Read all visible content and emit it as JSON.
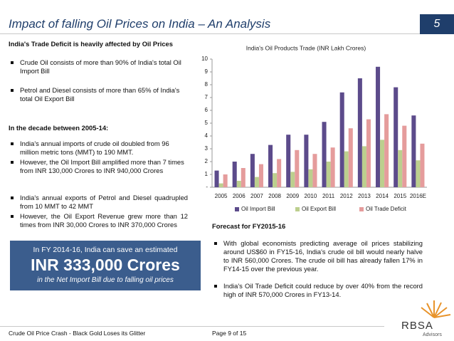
{
  "header": {
    "title": "Impact of falling Oil Prices on India – An Analysis",
    "slide_number": "5"
  },
  "left": {
    "heading": "India's Trade Deficit is heavily affected by Oil Prices",
    "bullets1": [
      "Crude Oil consists of more than 90% of India's total Oil Import Bill",
      "Petrol and Diesel consists of more than 65% of India's total Oil Export Bill"
    ],
    "heading2": "In the decade between 2005-14:",
    "bullets2": [
      "India's annual imports of crude oil doubled from 96 million metric tons (MMT) to 190 MMT.",
      "However, the Oil Import Bill amplified more than 7 times from INR 130,000 Crores to INR 940,000 Crores"
    ],
    "bullets3": [
      "India's annual exports of Petrol and Diesel quadrupled from 10 MMT to 42 MMT",
      "However, the Oil Export Revenue grew more than 12 times from INR 30,000 Crores to INR 370,000 Crores"
    ]
  },
  "callout": {
    "line1": "In FY 2014-16, India can save an estimated",
    "amount": "INR 333,000 Crores",
    "line2": "in the Net Import Bill due to falling oil prices"
  },
  "forecast": {
    "heading": "Forecast for FY2015-16",
    "bullets": [
      "With global economists predicting average oil prices stabilizing around US$60 in FY15-16, India's crude oil bill would nearly halve to INR 560,000 Crores. The crude oil bill has already fallen 17% in FY14-15 over the previous year.",
      "India's Oil Trade Deficit could reduce by over 40% from the record high of INR 570,000 Crores in FY13-14."
    ]
  },
  "footer": {
    "left": "Crude Oil Price Crash - Black Gold Loses its Glitter",
    "page": "Page 9 of 15",
    "logo": "RBSA",
    "logo_sub": "Advisors"
  },
  "chart_data": {
    "type": "bar",
    "title": "India's Oil Products Trade (INR Lakh Crores)",
    "categories": [
      "2005",
      "2006",
      "2007",
      "2008",
      "2009",
      "2010",
      "2011",
      "2012",
      "2013",
      "2014",
      "2015",
      "2016E"
    ],
    "series": [
      {
        "name": "Oil Import Bill",
        "color": "#5c4b8b",
        "values": [
          1.3,
          2.0,
          2.6,
          3.3,
          4.1,
          4.1,
          5.1,
          7.4,
          8.5,
          9.4,
          7.8,
          5.6
        ]
      },
      {
        "name": "Oil Export Bill",
        "color": "#bccf8e",
        "values": [
          0.3,
          0.5,
          0.8,
          1.1,
          1.2,
          1.4,
          2.0,
          2.8,
          3.2,
          3.7,
          2.9,
          2.1
        ]
      },
      {
        "name": "Oil Trade Deficit",
        "color": "#e59c9c",
        "values": [
          1.0,
          1.5,
          1.8,
          2.2,
          2.9,
          2.6,
          3.1,
          4.6,
          5.3,
          5.7,
          4.8,
          3.4
        ]
      }
    ],
    "ylim": [
      0,
      10
    ],
    "yticks": [
      {
        "value": 0,
        "label": "-"
      },
      1,
      2,
      3,
      4,
      5,
      6,
      7,
      8,
      9,
      10
    ],
    "legend": "bottom"
  }
}
